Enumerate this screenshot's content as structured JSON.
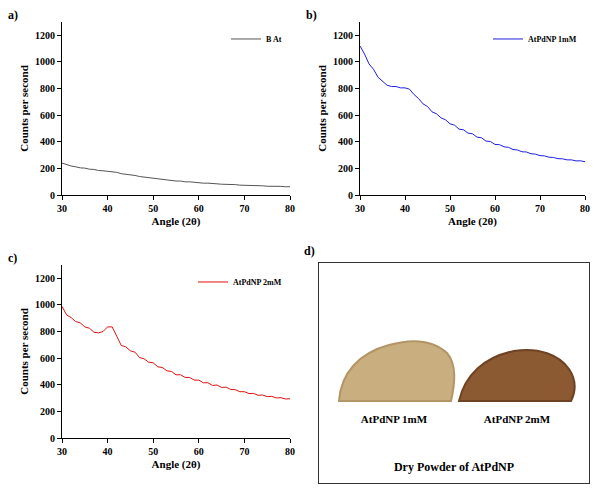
{
  "chart_data": [
    {
      "type": "line",
      "annotations": [
        "a)"
      ],
      "x_label": "Angle (2θ)",
      "y_label": "Counts per second",
      "x": [
        30,
        31,
        32,
        33,
        34,
        35,
        36,
        37,
        38,
        39,
        40,
        41,
        42,
        43,
        44,
        45,
        46,
        47,
        48,
        49,
        50,
        51,
        52,
        53,
        54,
        55,
        56,
        57,
        58,
        59,
        60,
        61,
        62,
        63,
        64,
        65,
        66,
        67,
        68,
        69,
        70,
        71,
        72,
        73,
        74,
        75,
        76,
        77,
        78,
        79,
        80
      ],
      "series": [
        {
          "name": "B At",
          "color": "#555555",
          "values": [
            240,
            228,
            218,
            212,
            204,
            202,
            194,
            192,
            184,
            182,
            178,
            170,
            170,
            160,
            157,
            149,
            147,
            139,
            135,
            127,
            126,
            119,
            119,
            112,
            111,
            105,
            105,
            99,
            99,
            94,
            93,
            89,
            89,
            84,
            84,
            81,
            81,
            77,
            78,
            74,
            74,
            71,
            71,
            69,
            69,
            66,
            67,
            64,
            65,
            62,
            62
          ]
        }
      ],
      "xlim": [
        30,
        80
      ],
      "xticks": [
        30,
        40,
        50,
        60,
        70,
        80
      ],
      "ylim": [
        0,
        1300
      ],
      "yticks": [
        0,
        200,
        400,
        600,
        800,
        1000,
        1200
      ],
      "legend": "upper right"
    },
    {
      "type": "line",
      "annotations": [
        "b)"
      ],
      "x_label": "Angle (2θ)",
      "y_label": "Counts per second",
      "x": [
        30,
        31,
        32,
        33,
        34,
        35,
        36,
        37,
        38,
        39,
        40,
        41,
        42,
        43,
        44,
        45,
        46,
        47,
        48,
        49,
        50,
        51,
        52,
        53,
        54,
        55,
        56,
        57,
        58,
        59,
        60,
        61,
        62,
        63,
        64,
        65,
        66,
        67,
        68,
        69,
        70,
        71,
        72,
        73,
        74,
        75,
        76,
        77,
        78,
        79,
        80
      ],
      "series": [
        {
          "name": "AtPdNP 1mM",
          "color": "#1f1fe0",
          "values": [
            1120,
            1060,
            985,
            945,
            885,
            855,
            825,
            815,
            815,
            805,
            805,
            795,
            755,
            725,
            685,
            665,
            625,
            610,
            580,
            565,
            535,
            525,
            495,
            490,
            465,
            460,
            435,
            430,
            405,
            402,
            380,
            378,
            362,
            358,
            342,
            338,
            325,
            323,
            310,
            307,
            296,
            294,
            284,
            282,
            273,
            272,
            264,
            264,
            256,
            257,
            250
          ]
        }
      ],
      "xlim": [
        30,
        80
      ],
      "xticks": [
        30,
        40,
        50,
        60,
        70,
        80
      ],
      "ylim": [
        0,
        1300
      ],
      "yticks": [
        0,
        200,
        400,
        600,
        800,
        1000,
        1200
      ],
      "legend": "upper right"
    },
    {
      "type": "line",
      "annotations": [
        "c)"
      ],
      "x_label": "Angle (2θ)",
      "y_label": "Counts per second",
      "x": [
        30,
        31,
        32,
        33,
        34,
        35,
        36,
        37,
        38,
        39,
        40,
        41,
        42,
        43,
        44,
        45,
        46,
        47,
        48,
        49,
        50,
        51,
        52,
        53,
        54,
        55,
        56,
        57,
        58,
        59,
        60,
        61,
        62,
        63,
        64,
        65,
        66,
        67,
        68,
        69,
        70,
        71,
        72,
        73,
        74,
        75,
        76,
        77,
        78,
        79,
        80
      ],
      "series": [
        {
          "name": "AtPdNP 2mM",
          "color": "#e01010",
          "values": [
            990,
            925,
            905,
            875,
            865,
            835,
            825,
            795,
            790,
            800,
            835,
            835,
            765,
            695,
            685,
            655,
            645,
            605,
            595,
            570,
            565,
            535,
            530,
            505,
            500,
            475,
            475,
            455,
            455,
            435,
            435,
            415,
            415,
            395,
            398,
            380,
            382,
            365,
            363,
            348,
            348,
            334,
            335,
            321,
            323,
            311,
            313,
            301,
            303,
            293,
            295
          ]
        }
      ],
      "xlim": [
        30,
        80
      ],
      "xticks": [
        30,
        40,
        50,
        60,
        70,
        80
      ],
      "ylim": [
        0,
        1300
      ],
      "yticks": [
        0,
        200,
        400,
        600,
        800,
        1000,
        1200
      ],
      "legend": "upper right"
    }
  ],
  "photo_panel": {
    "annotations": [
      "d)"
    ],
    "items": [
      "AtPdNP 1mM",
      "AtPdNP 2mM"
    ],
    "caption": "Dry Powder of AtPdNP"
  }
}
